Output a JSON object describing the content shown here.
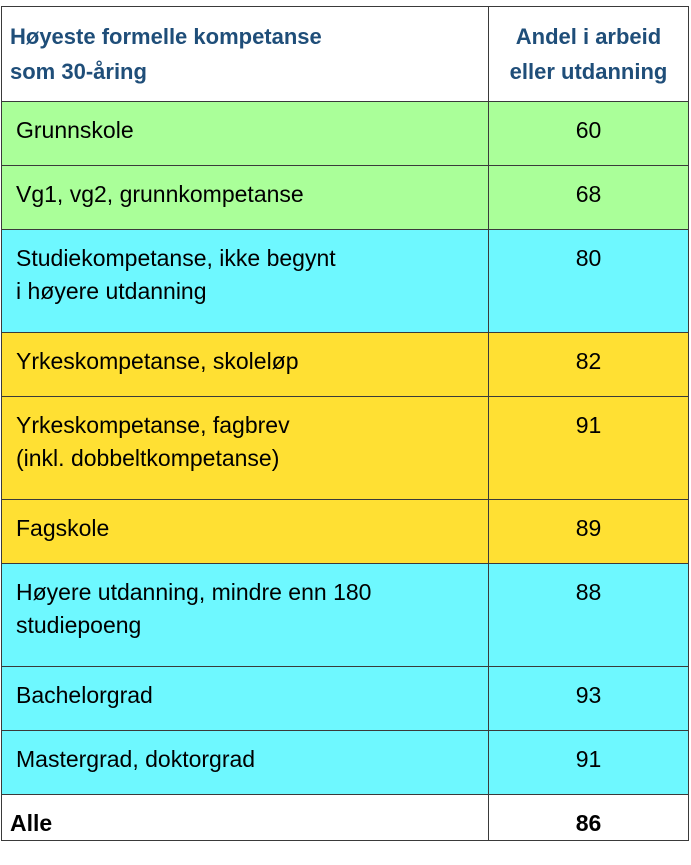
{
  "chart_data": {
    "type": "table",
    "columns": [
      "Høyeste formelle kompetanse som 30-åring",
      "Andel i arbeid eller utdanning"
    ],
    "header": {
      "label_lines": [
        "Høyeste formelle kompetanse",
        "som 30-åring"
      ],
      "value_lines": [
        "Andel i arbeid",
        "eller utdanning"
      ]
    },
    "rows": [
      {
        "lines": [
          "Grunnskole"
        ],
        "value": "60",
        "color": "#aaff99"
      },
      {
        "lines": [
          "Vg1, vg2, grunnkompetanse"
        ],
        "value": "68",
        "color": "#aaff99"
      },
      {
        "lines": [
          "Studiekompetanse, ikke begynt",
          "i høyere utdanning"
        ],
        "value": "80",
        "color": "#6ef8ff"
      },
      {
        "lines": [
          "Yrkeskompetanse, skoleløp"
        ],
        "value": "82",
        "color": "#ffe033"
      },
      {
        "lines": [
          "Yrkeskompetanse, fagbrev",
          "(inkl. dobbeltkompetanse)"
        ],
        "value": "91",
        "color": "#ffe033"
      },
      {
        "lines": [
          "Fagskole"
        ],
        "value": "89",
        "color": "#ffe033"
      },
      {
        "lines": [
          "Høyere utdanning, mindre enn 180",
          "studiepoeng"
        ],
        "value": "88",
        "color": "#6ef8ff"
      },
      {
        "lines": [
          "Bachelorgrad"
        ],
        "value": "93",
        "color": "#6ef8ff"
      },
      {
        "lines": [
          "Mastergrad, doktorgrad"
        ],
        "value": "91",
        "color": "#6ef8ff"
      }
    ],
    "total": {
      "label": "Alle",
      "value": "86"
    }
  }
}
